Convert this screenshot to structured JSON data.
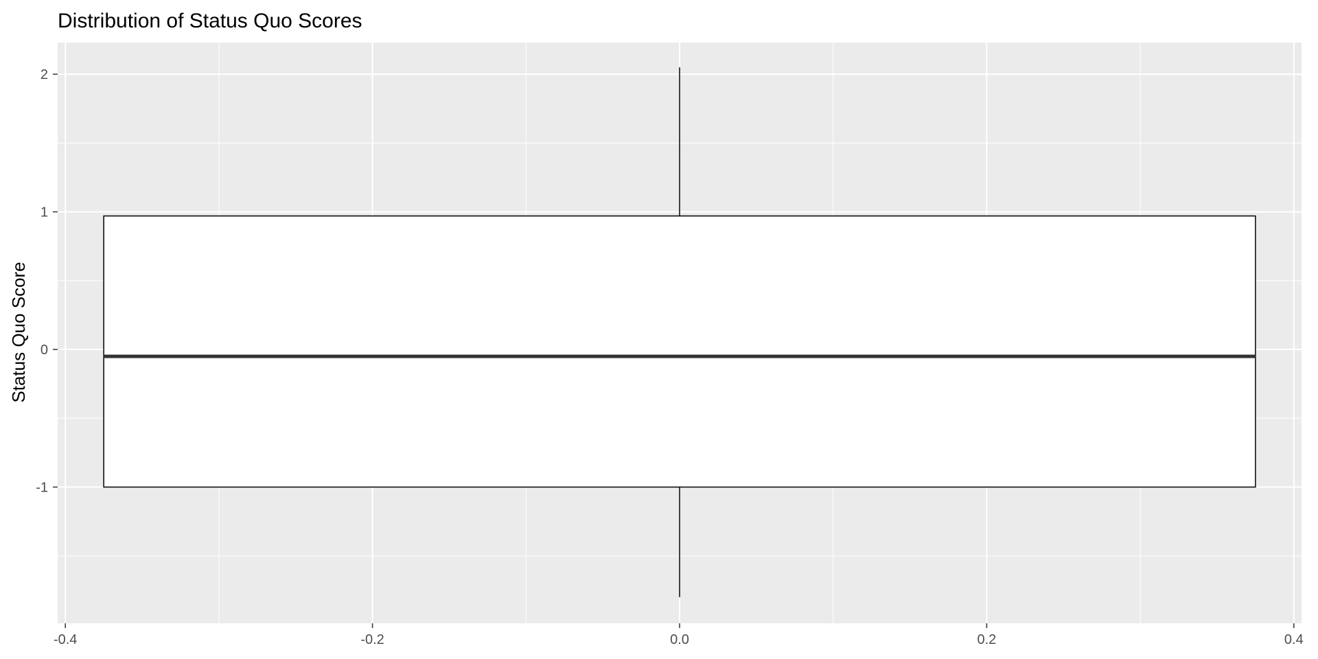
{
  "chart_data": {
    "type": "boxplot",
    "title": "Distribution of Status Quo Scores",
    "xlabel": "",
    "ylabel": "Status Quo Score",
    "xlim": [
      -0.405,
      0.405
    ],
    "ylim": [
      -1.99,
      2.23
    ],
    "x_ticks": [
      -0.4,
      -0.2,
      0.0,
      0.2,
      0.4
    ],
    "x_tick_labels": [
      "-0.4",
      "-0.2",
      "0.0",
      "0.2",
      "0.4"
    ],
    "y_ticks": [
      -1,
      0,
      1,
      2
    ],
    "y_tick_labels": [
      "-1",
      "0",
      "1",
      "2"
    ],
    "grid": true,
    "legend": "none",
    "box": {
      "x_center": 0.0,
      "x_half_width": 0.375,
      "lower_whisker": -1.8,
      "q1": -1.0,
      "median": -0.05,
      "q3": 0.97,
      "upper_whisker": 2.05
    },
    "colors": {
      "panel_background": "#ebebeb",
      "grid_line": "#ffffff",
      "box_fill": "#ffffff",
      "box_stroke": "#000000",
      "median_line": "#333333",
      "tick_text": "#4d4d4d",
      "axis_tick": "#333333"
    }
  }
}
